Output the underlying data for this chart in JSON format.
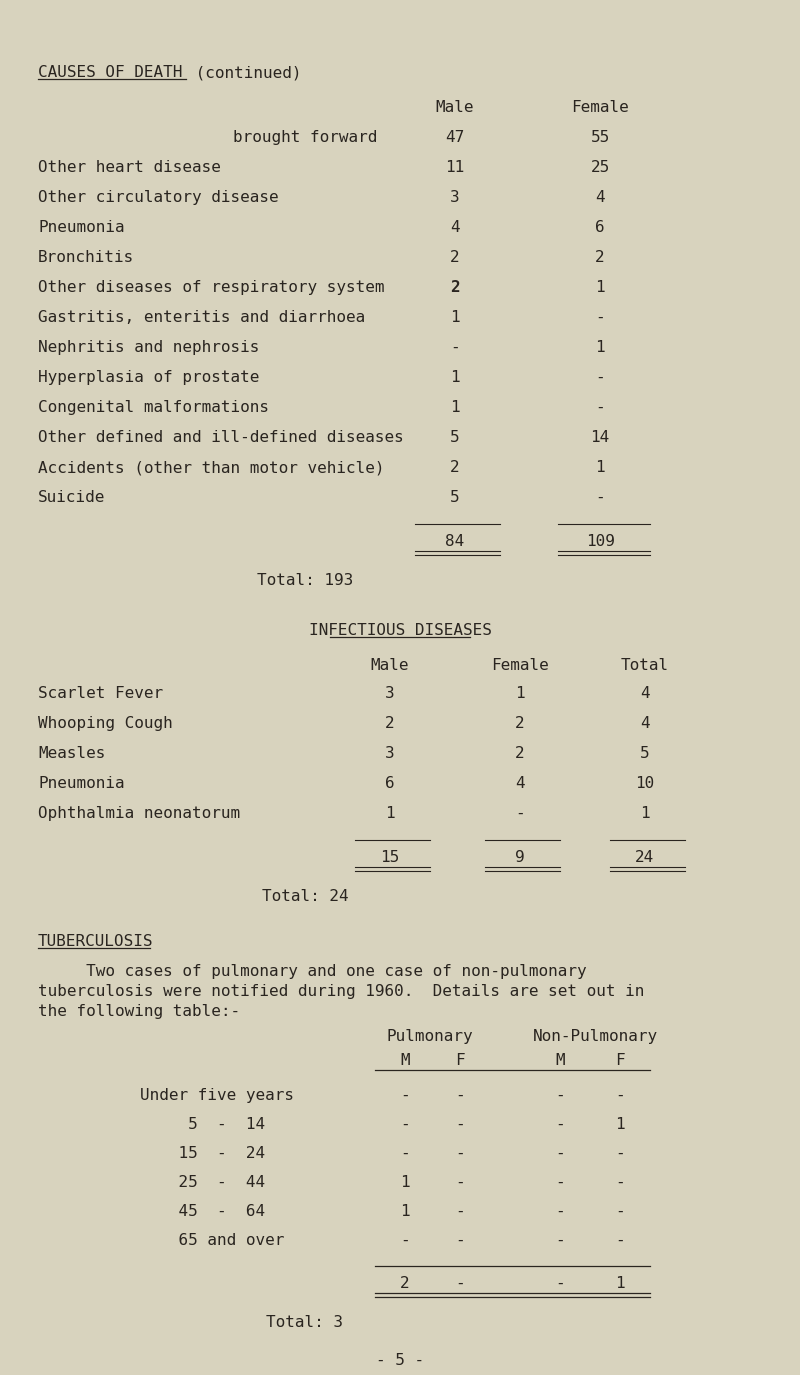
{
  "bg_color": "#d8d3be",
  "text_color": "#2a2520",
  "font_family": "monospace",
  "page_number": "- 5 -",
  "section1": {
    "title_underlined": "CAUSES OF DEATH",
    "title_rest": " (continued)",
    "col_headers": [
      "Male",
      "Female"
    ],
    "rows": [
      {
        "label": "brought forward",
        "male": "47",
        "female": "55",
        "center_label": true
      },
      {
        "label": "Other heart disease",
        "male": "11",
        "female": "25"
      },
      {
        "label": "Other circulatory disease",
        "male": "3",
        "female": "4"
      },
      {
        "label": "Pneumonia",
        "male": "4",
        "female": "6"
      },
      {
        "label": "Bronchitis",
        "male": "2",
        "female": "2"
      },
      {
        "label": "Other diseases of respiratory system",
        "male": "2",
        "female": "1",
        "bold_male": true
      },
      {
        "label": "Gastritis, enteritis and diarrhoea",
        "male": "1",
        "female": "-"
      },
      {
        "label": "Nephritis and nephrosis",
        "male": "-",
        "female": "1"
      },
      {
        "label": "Hyperplasia of prostate",
        "male": "1",
        "female": "-"
      },
      {
        "label": "Congenital malformations",
        "male": "1",
        "female": "-"
      },
      {
        "label": "Other defined and ill-defined diseases",
        "male": "5",
        "female": "14"
      },
      {
        "label": "Accidents (other than motor vehicle)",
        "male": "2",
        "female": "1"
      },
      {
        "label": "Suicide",
        "male": "5",
        "female": "-"
      }
    ],
    "total_male": "84",
    "total_female": "109",
    "grand_total": "Total: 193"
  },
  "section2": {
    "title": "INFECTIOUS DISEASES",
    "col_headers": [
      "Male",
      "Female",
      "Total"
    ],
    "rows": [
      {
        "label": "Scarlet Fever",
        "male": "3",
        "female": "1",
        "total": "4"
      },
      {
        "label": "Whooping Cough",
        "male": "2",
        "female": "2",
        "total": "4"
      },
      {
        "label": "Measles",
        "male": "3",
        "female": "2",
        "total": "5"
      },
      {
        "label": "Pneumonia",
        "male": "6",
        "female": "4",
        "total": "10"
      },
      {
        "label": "Ophthalmia neonatorum",
        "male": "1",
        "female": "-",
        "total": "1"
      }
    ],
    "total_male": "15",
    "total_female": "9",
    "total_total": "24",
    "grand_total": "Total: 24"
  },
  "section3": {
    "title": "TUBERCULOSIS",
    "para1": "     Two cases of pulmonary and one case of non-pulmonary",
    "para2": "tuberculosis were notified during 1960.  Details are set out in",
    "para3": "the following table:-",
    "group_headers": [
      "Pulmonary",
      "Non-Pulmonary"
    ],
    "col_headers": [
      "M",
      "F",
      "M",
      "F"
    ],
    "age_rows": [
      {
        "label": "Under five years",
        "vals": [
          "-",
          "-",
          "-",
          "-"
        ]
      },
      {
        "label": "     5  -  14",
        "vals": [
          "-",
          "-",
          "-",
          "1"
        ]
      },
      {
        "label": "    15  -  24",
        "vals": [
          "-",
          "-",
          "-",
          "-"
        ]
      },
      {
        "label": "    25  -  44",
        "vals": [
          "1",
          "-",
          "-",
          "-"
        ]
      },
      {
        "label": "    45  -  64",
        "vals": [
          "1",
          "-",
          "-",
          "-"
        ]
      },
      {
        "label": "    65 and over",
        "vals": [
          "-",
          "-",
          "-",
          "-"
        ]
      }
    ],
    "totals": [
      "2",
      "-",
      "-",
      "1"
    ],
    "grand_total": "Total: 3"
  }
}
